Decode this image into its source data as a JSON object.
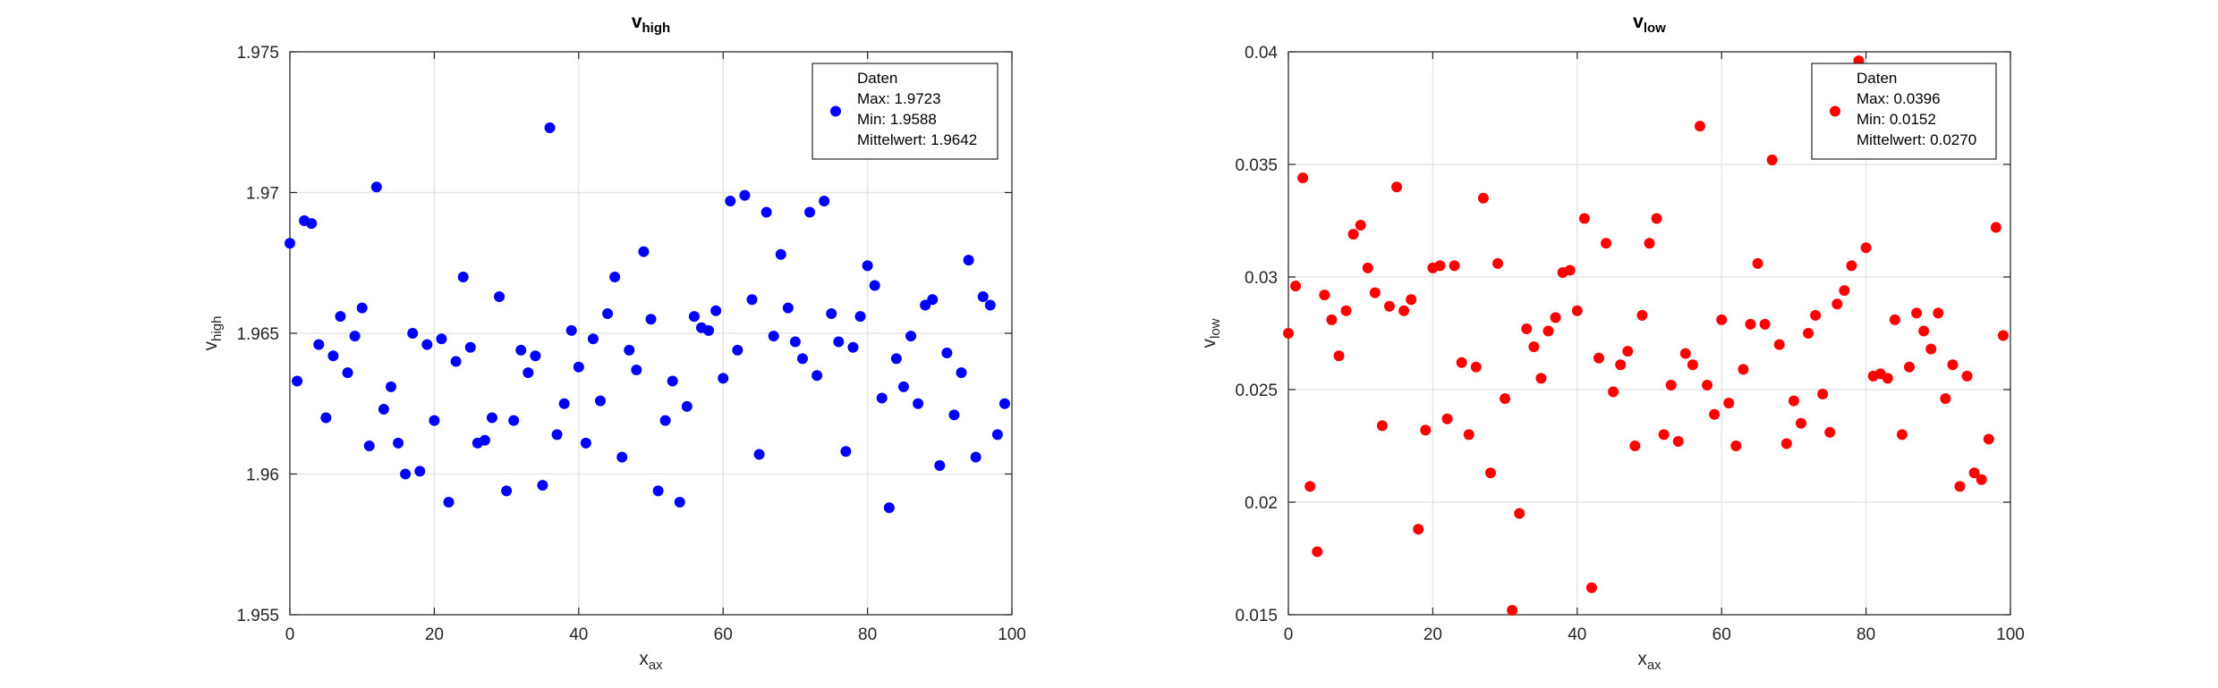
{
  "chart_data": [
    {
      "type": "scatter",
      "title": "v",
      "title_sub": "high",
      "xlabel": "x",
      "xlabel_sub": "ax",
      "ylabel": "v",
      "ylabel_sub": "high",
      "xlim": [
        0,
        100
      ],
      "ylim": [
        1.955,
        1.975
      ],
      "xticks": [
        0,
        20,
        40,
        60,
        80,
        100
      ],
      "yticks": [
        1.955,
        1.96,
        1.965,
        1.97,
        1.975
      ],
      "ytick_labels": [
        "1.955",
        "1.96",
        "1.965",
        "1.97",
        "1.975"
      ],
      "grid": true,
      "color": "#0000ff",
      "legend": {
        "placement": "top-right",
        "lines": [
          "Daten",
          "Max: 1.9723",
          "Min: 1.9588",
          "Mittelwert: 1.9642"
        ]
      },
      "x": [
        0,
        1,
        2,
        3,
        4,
        5,
        6,
        7,
        8,
        9,
        10,
        11,
        12,
        13,
        14,
        15,
        16,
        17,
        18,
        19,
        20,
        21,
        22,
        23,
        24,
        25,
        26,
        27,
        28,
        29,
        30,
        31,
        32,
        33,
        34,
        35,
        36,
        37,
        38,
        39,
        40,
        41,
        42,
        43,
        44,
        45,
        46,
        47,
        48,
        49,
        50,
        51,
        52,
        53,
        54,
        55,
        56,
        57,
        58,
        59,
        60,
        61,
        62,
        63,
        64,
        65,
        66,
        67,
        68,
        69,
        70,
        71,
        72,
        73,
        74,
        75,
        76,
        77,
        78,
        79,
        80,
        81,
        82,
        83,
        84,
        85,
        86,
        87,
        88,
        89,
        90,
        91,
        92,
        93,
        94,
        95,
        96,
        97,
        98,
        99
      ],
      "y": [
        1.9682,
        1.9633,
        1.969,
        1.9689,
        1.9646,
        1.962,
        1.9642,
        1.9656,
        1.9636,
        1.9649,
        1.9659,
        1.961,
        1.9702,
        1.9623,
        1.9631,
        1.9611,
        1.96,
        1.965,
        1.9601,
        1.9646,
        1.9619,
        1.9648,
        1.959,
        1.964,
        1.967,
        1.9645,
        1.9611,
        1.9612,
        1.962,
        1.9663,
        1.9594,
        1.9619,
        1.9644,
        1.9636,
        1.9642,
        1.9596,
        1.9723,
        1.9614,
        1.9625,
        1.9651,
        1.9638,
        1.9611,
        1.9648,
        1.9626,
        1.9657,
        1.967,
        1.9606,
        1.9644,
        1.9637,
        1.9679,
        1.9655,
        1.9594,
        1.9619,
        1.9633,
        1.959,
        1.9624,
        1.9656,
        1.9652,
        1.9651,
        1.9658,
        1.9634,
        1.9697,
        1.9644,
        1.9699,
        1.9662,
        1.9607,
        1.9693,
        1.9649,
        1.9678,
        1.9659,
        1.9647,
        1.9641,
        1.9693,
        1.9635,
        1.9697,
        1.9657,
        1.9647,
        1.9608,
        1.9645,
        1.9656,
        1.9674,
        1.9667,
        1.9627,
        1.9588,
        1.9641,
        1.9631,
        1.9649,
        1.9625,
        1.966,
        1.9662,
        1.9603,
        1.9643,
        1.9621,
        1.9636,
        1.9676,
        1.9606,
        1.9663,
        1.966,
        1.9614,
        1.9625
      ]
    },
    {
      "type": "scatter",
      "title": "v",
      "title_sub": "low",
      "xlabel": "x",
      "xlabel_sub": "ax",
      "ylabel": "v",
      "ylabel_sub": "low",
      "xlim": [
        0,
        100
      ],
      "ylim": [
        0.015,
        0.04
      ],
      "xticks": [
        0,
        20,
        40,
        60,
        80,
        100
      ],
      "yticks": [
        0.015,
        0.02,
        0.025,
        0.03,
        0.035,
        0.04
      ],
      "ytick_labels": [
        "0.015",
        "0.02",
        "0.025",
        "0.03",
        "0.035",
        "0.04"
      ],
      "grid": true,
      "color": "#ff0000",
      "legend": {
        "placement": "top-right",
        "lines": [
          "Daten",
          "Max: 0.0396",
          "Min: 0.0152",
          "Mittelwert: 0.0270"
        ]
      },
      "x": [
        0,
        1,
        2,
        3,
        4,
        5,
        6,
        7,
        8,
        9,
        10,
        11,
        12,
        13,
        14,
        15,
        16,
        17,
        18,
        19,
        20,
        21,
        22,
        23,
        24,
        25,
        26,
        27,
        28,
        29,
        30,
        31,
        32,
        33,
        34,
        35,
        36,
        37,
        38,
        39,
        40,
        41,
        42,
        43,
        44,
        45,
        46,
        47,
        48,
        49,
        50,
        51,
        52,
        53,
        54,
        55,
        56,
        57,
        58,
        59,
        60,
        61,
        62,
        63,
        64,
        65,
        66,
        67,
        68,
        69,
        70,
        71,
        72,
        73,
        74,
        75,
        76,
        77,
        78,
        79,
        80,
        81,
        82,
        83,
        84,
        85,
        86,
        87,
        88,
        89,
        90,
        91,
        92,
        93,
        94,
        95,
        96,
        97,
        98,
        99
      ],
      "y": [
        0.0275,
        0.0296,
        0.0344,
        0.0207,
        0.0178,
        0.0292,
        0.0281,
        0.0265,
        0.0285,
        0.0319,
        0.0323,
        0.0304,
        0.0293,
        0.0234,
        0.0287,
        0.034,
        0.0285,
        0.029,
        0.0188,
        0.0232,
        0.0304,
        0.0305,
        0.0237,
        0.0305,
        0.0262,
        0.023,
        0.026,
        0.0335,
        0.0213,
        0.0306,
        0.0246,
        0.0152,
        0.0195,
        0.0277,
        0.0269,
        0.0255,
        0.0276,
        0.0282,
        0.0302,
        0.0303,
        0.0285,
        0.0326,
        0.0162,
        0.0264,
        0.0315,
        0.0249,
        0.0261,
        0.0267,
        0.0225,
        0.0283,
        0.0315,
        0.0326,
        0.023,
        0.0252,
        0.0227,
        0.0266,
        0.0261,
        0.0367,
        0.0252,
        0.0239,
        0.0281,
        0.0244,
        0.0225,
        0.0259,
        0.0279,
        0.0306,
        0.0279,
        0.0352,
        0.027,
        0.0226,
        0.0245,
        0.0235,
        0.0275,
        0.0283,
        0.0248,
        0.0231,
        0.0288,
        0.0294,
        0.0305,
        0.0396,
        0.0313,
        0.0256,
        0.0257,
        0.0255,
        0.0281,
        0.023,
        0.026,
        0.0284,
        0.0276,
        0.0268,
        0.0284,
        0.0246,
        0.0261,
        0.0207,
        0.0256,
        0.0213,
        0.021,
        0.0228,
        0.0322,
        0.0274
      ]
    }
  ]
}
